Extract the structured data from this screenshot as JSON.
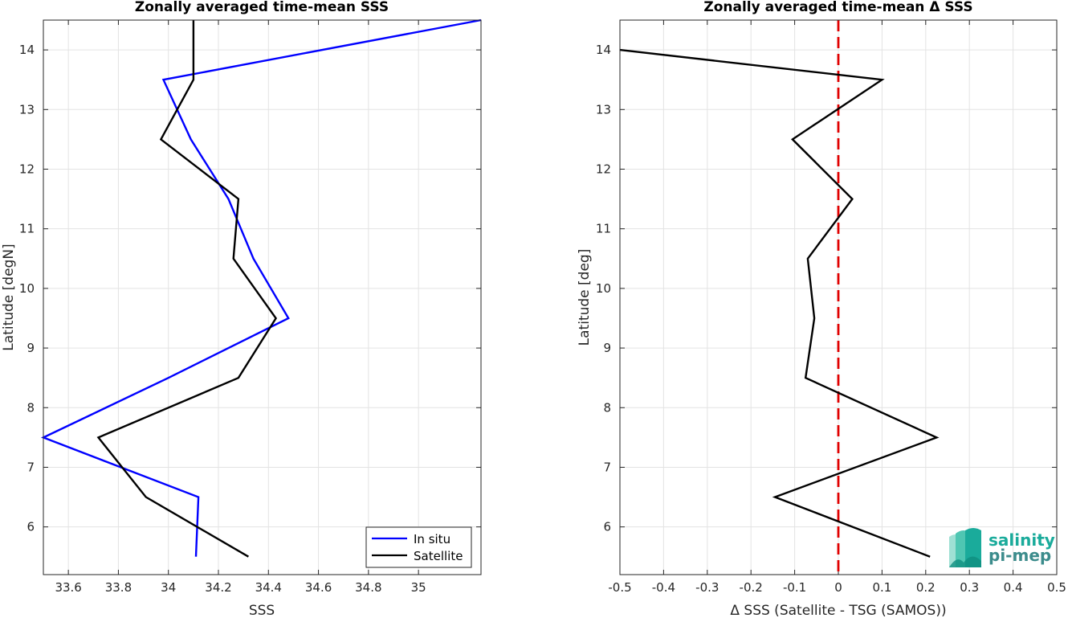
{
  "chart_data": [
    {
      "type": "line",
      "title": "Zonally averaged time-mean SSS",
      "xlabel": "SSS",
      "ylabel": "Latitude [degN]",
      "xlim": [
        33.5,
        35.25
      ],
      "ylim": [
        5.2,
        14.5
      ],
      "xticks": [
        33.6,
        33.8,
        34,
        34.2,
        34.4,
        34.6,
        34.8,
        35
      ],
      "xtick_labels": [
        "33.6",
        "33.8",
        "34",
        "34.2",
        "34.4",
        "34.6",
        "34.8",
        "35"
      ],
      "yticks": [
        6,
        7,
        8,
        9,
        10,
        11,
        12,
        13,
        14
      ],
      "ytick_labels": [
        "6",
        "7",
        "8",
        "9",
        "10",
        "11",
        "12",
        "13",
        "14"
      ],
      "grid": true,
      "legend_position": "bottom-right",
      "series": [
        {
          "name": "In situ",
          "color": "#0000ff",
          "x": [
            34.11,
            34.12,
            33.5,
            34.0,
            34.48,
            34.34,
            34.24,
            34.09,
            33.98,
            35.25
          ],
          "y": [
            5.5,
            6.5,
            7.5,
            8.5,
            9.5,
            10.5,
            11.5,
            12.5,
            13.5,
            14.5
          ]
        },
        {
          "name": "Satellite",
          "color": "#000000",
          "x": [
            34.32,
            33.91,
            33.72,
            34.28,
            34.43,
            34.26,
            34.28,
            33.97,
            34.1,
            34.1
          ],
          "y": [
            5.5,
            6.5,
            7.5,
            8.5,
            9.5,
            10.5,
            11.5,
            12.5,
            13.5,
            14.5
          ]
        }
      ]
    },
    {
      "type": "line",
      "title": "Zonally averaged time-mean Δ SSS",
      "xlabel": "Δ SSS (Satellite - TSG (SAMOS))",
      "ylabel": "Latitude [deg]",
      "xlim": [
        -0.5,
        0.5
      ],
      "ylim": [
        5.2,
        14.5
      ],
      "xticks": [
        -0.5,
        -0.4,
        -0.3,
        -0.2,
        -0.1,
        0,
        0.1,
        0.2,
        0.3,
        0.4,
        0.5
      ],
      "xtick_labels": [
        "-0.5",
        "-0.4",
        "-0.3",
        "-0.2",
        "-0.1",
        "0",
        "0.1",
        "0.2",
        "0.3",
        "0.4",
        "0.5"
      ],
      "yticks": [
        6,
        7,
        8,
        9,
        10,
        11,
        12,
        13,
        14
      ],
      "ytick_labels": [
        "6",
        "7",
        "8",
        "9",
        "10",
        "11",
        "12",
        "13",
        "14"
      ],
      "grid": true,
      "reference_line": {
        "x": 0,
        "color": "#e00000",
        "style": "dashed"
      },
      "series": [
        {
          "color": "#000000",
          "x": [
            0.21,
            -0.145,
            0.225,
            -0.075,
            -0.055,
            -0.07,
            0.032,
            -0.105,
            0.1,
            -0.5
          ],
          "y": [
            5.5,
            6.5,
            7.5,
            8.5,
            9.5,
            10.5,
            11.5,
            12.5,
            13.5,
            14.0
          ]
        }
      ]
    }
  ],
  "logo": {
    "line1": "salinity",
    "line2": "pi-mep",
    "color1": "#1aab9b",
    "color2": "#3c8c8c"
  }
}
